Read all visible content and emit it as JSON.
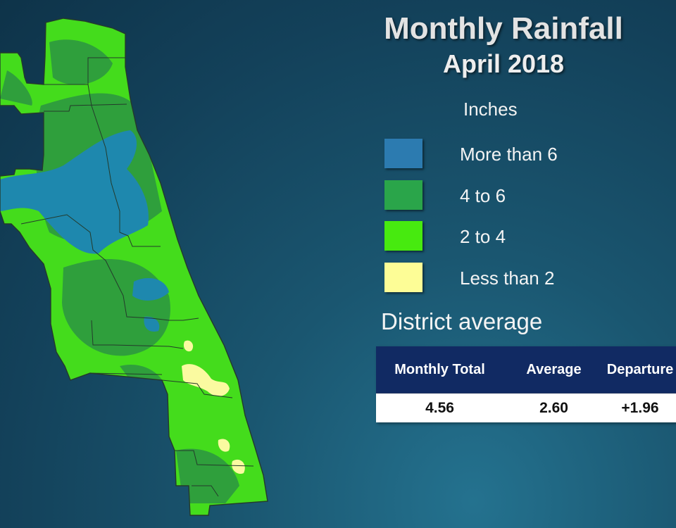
{
  "title": "Monthly Rainfall",
  "subtitle": "April 2018",
  "legend": {
    "units": "Inches",
    "items": [
      {
        "label": "More than 6",
        "color": "#2c7bb0"
      },
      {
        "label": "4 to 6",
        "color": "#2aa54a"
      },
      {
        "label": "2 to 4",
        "color": "#47ea0f"
      },
      {
        "label": "Less than 2",
        "color": "#fdfd96"
      }
    ]
  },
  "district": {
    "heading": "District average",
    "columns": [
      "Monthly Total",
      "Average",
      "Departure"
    ],
    "values": [
      "4.56",
      "2.60",
      "+1.96"
    ]
  },
  "map": {
    "colors": {
      "county_line": "#243a2b",
      "over_6": "#1e88ae",
      "four_to_six": "#2f9f3c",
      "two_to_four": "#44dc1c",
      "under_2": "#fafaa0"
    }
  }
}
